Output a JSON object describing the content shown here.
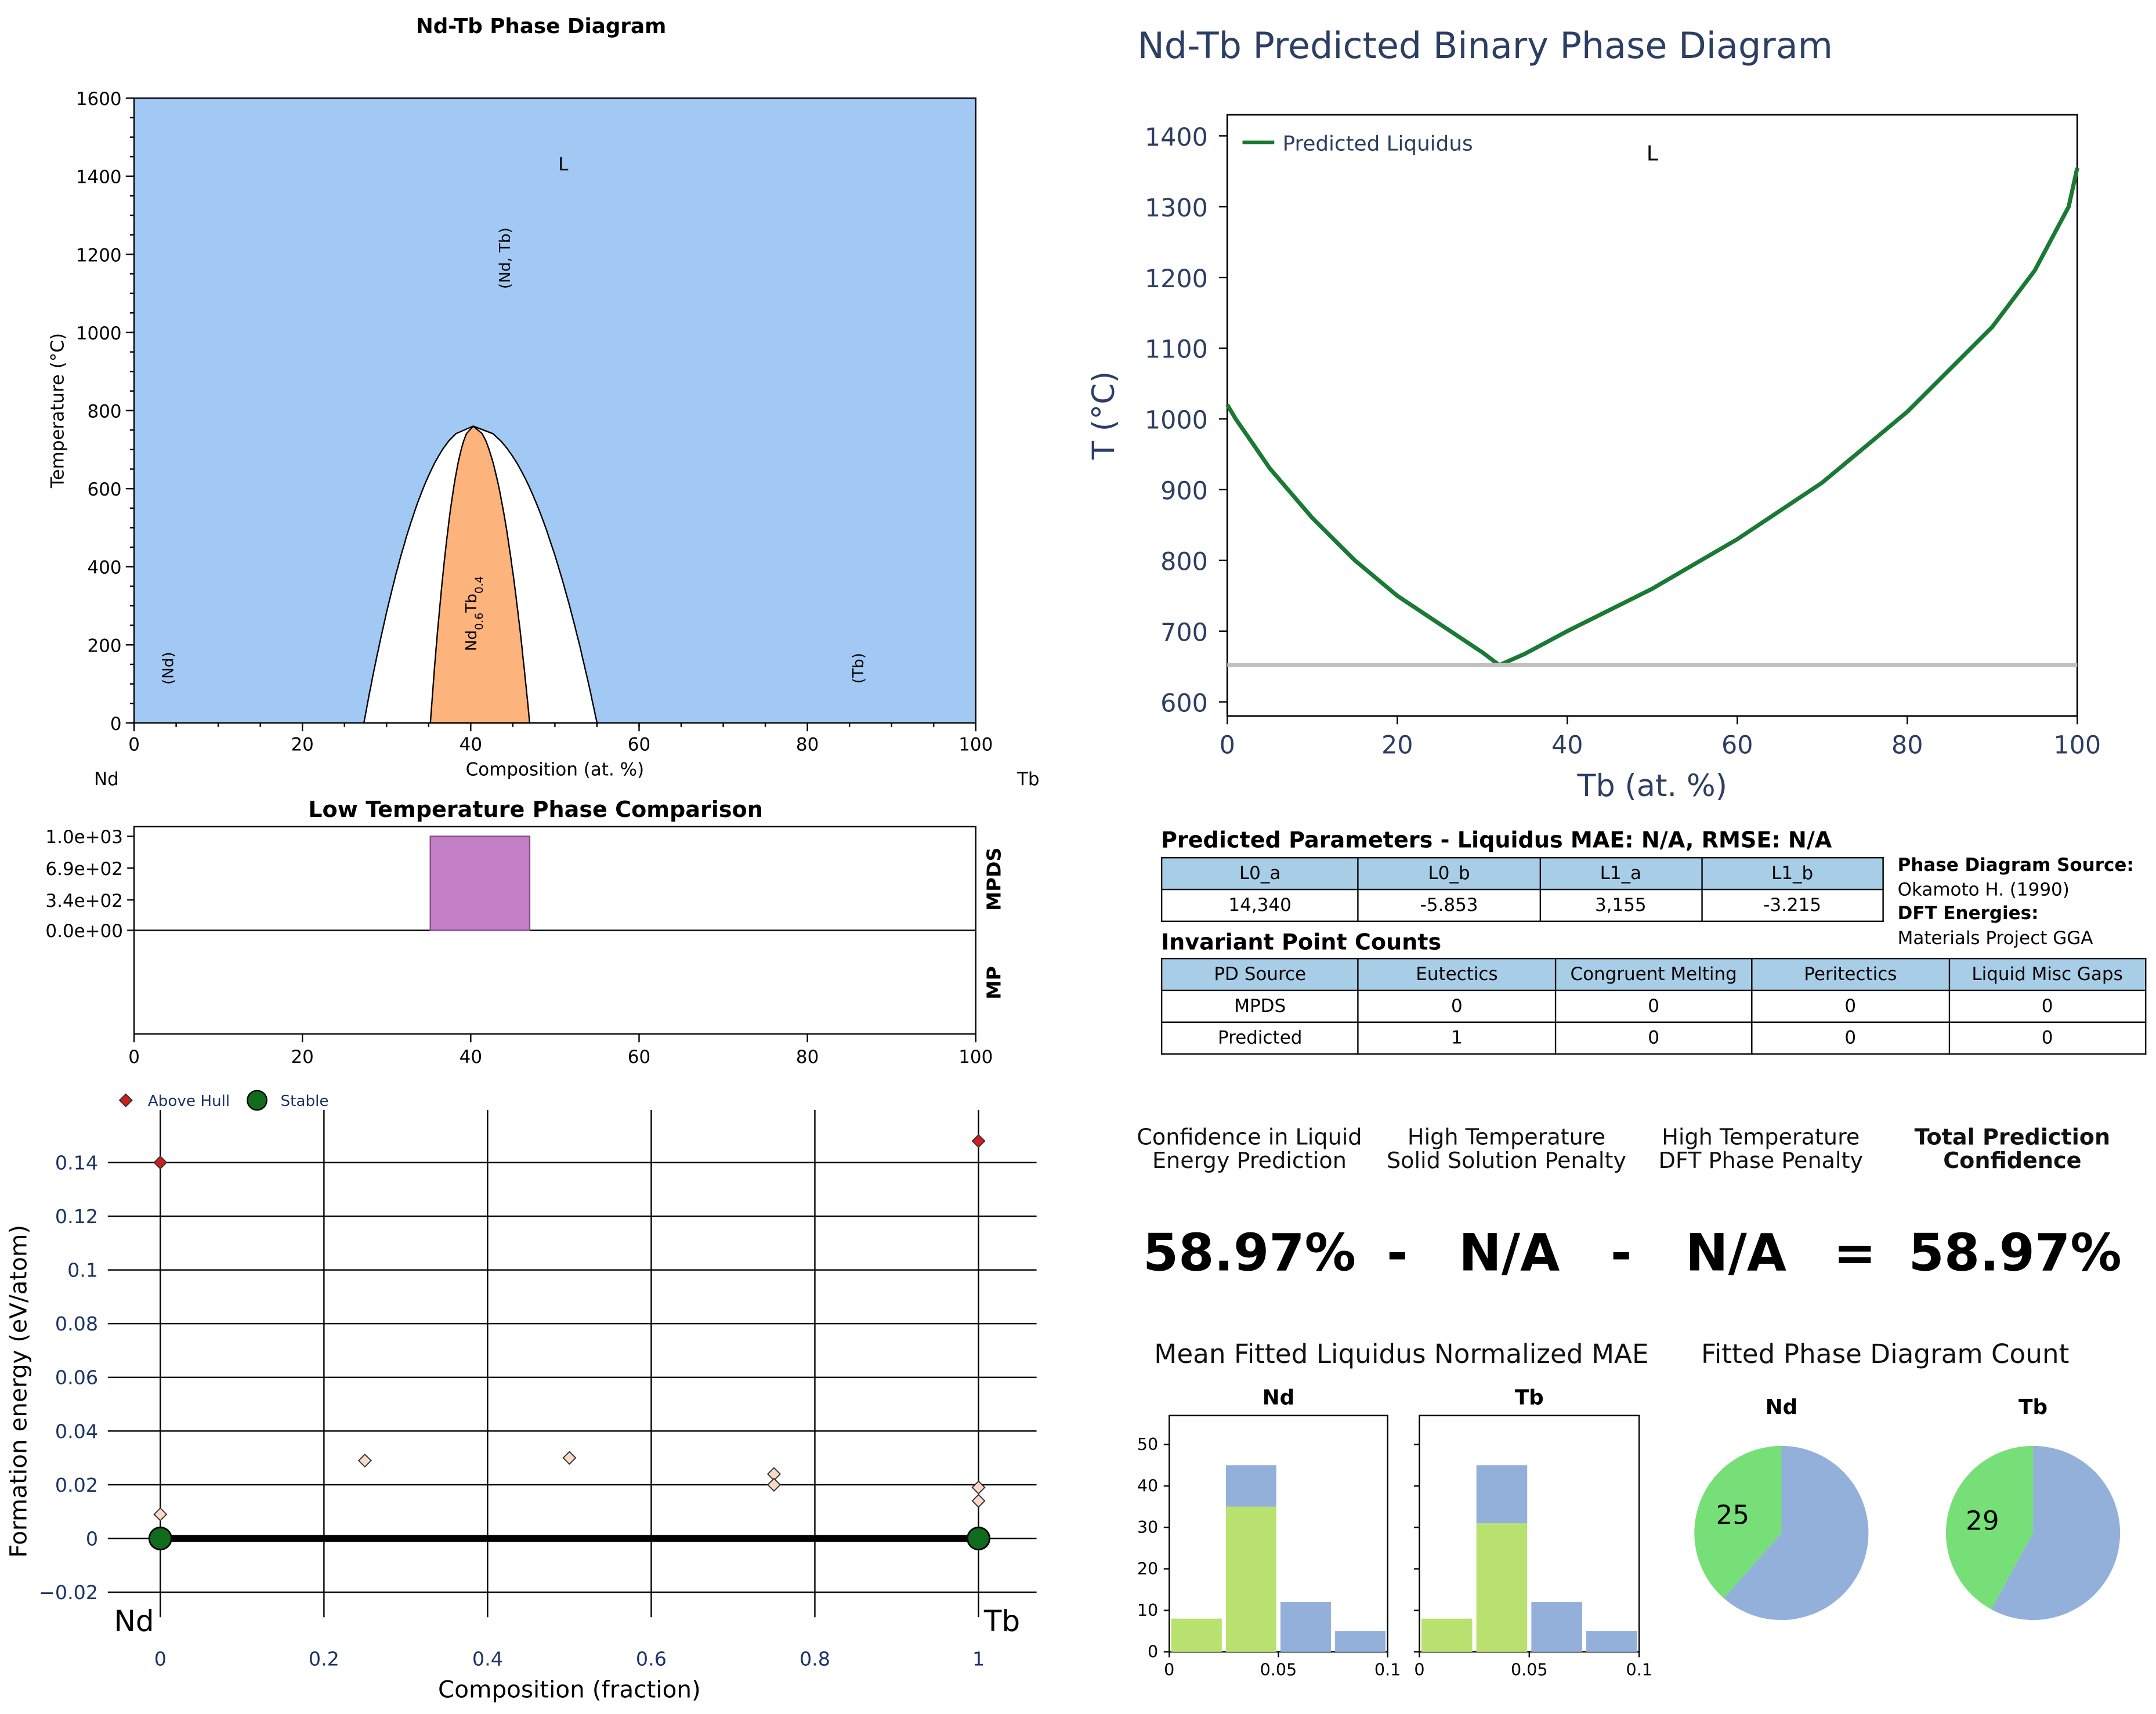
{
  "chart_data": [
    {
      "type": "area",
      "title": "Nd-Tb Phase Diagram",
      "xlabel": "Composition (at. %)",
      "ylabel": "Temperature (°C)",
      "xlim": [
        0,
        100
      ],
      "ylim": [
        0,
        1600
      ],
      "xticks": [
        "0",
        "20",
        "40",
        "60",
        "80",
        "100"
      ],
      "yticks": [
        "0",
        "200",
        "400",
        "600",
        "800",
        "1000",
        "1200",
        "1400",
        "1600"
      ],
      "element_left": "Nd",
      "element_right": "Tb",
      "regions": [
        {
          "label": "L",
          "x": 51,
          "y": 1415
        },
        {
          "label": "(Nd, Tb)",
          "x": 44,
          "y": 1190
        },
        {
          "label": "(Nd)",
          "x": 4,
          "y": 140
        },
        {
          "label": "(Tb)",
          "x": 86,
          "y": 140
        },
        {
          "label": "Nd0.6Tb0.4",
          "x": 40,
          "y": 280
        }
      ],
      "misc_gap_outer": {
        "x_left": 27.3,
        "x_right": 55,
        "peak_x": 40.3,
        "peak_t": 760
      },
      "compound_field": {
        "x_left": 35.2,
        "x_right": 47,
        "peak_x": 40.3,
        "peak_t": 760
      },
      "colors": {
        "liquid": "#a1c9f4",
        "compound": "#fdb37c",
        "gap": "#ffffff"
      }
    },
    {
      "type": "line",
      "title": "Nd-Tb Predicted Binary Phase Diagram",
      "xlabel": "Tb (at. %)",
      "ylabel": "T (°C)",
      "xlim": [
        0,
        100
      ],
      "ylim": [
        580,
        1430
      ],
      "xticks": [
        "0",
        "20",
        "40",
        "60",
        "80",
        "100"
      ],
      "yticks": [
        "600",
        "700",
        "800",
        "900",
        "1000",
        "1100",
        "1200",
        "1300",
        "1400"
      ],
      "legend": "top-left",
      "region_label": {
        "text": "L",
        "x": 50,
        "y": 1375
      },
      "series": [
        {
          "name": "Predicted Liquidus",
          "color": "#1a7a33",
          "x": [
            0,
            1,
            3,
            5,
            10,
            15,
            20,
            25,
            30,
            32,
            35,
            40,
            50,
            60,
            70,
            80,
            90,
            95,
            99,
            100
          ],
          "y": [
            1020,
            1000,
            965,
            930,
            860,
            800,
            750,
            710,
            670,
            652,
            668,
            700,
            760,
            830,
            910,
            1010,
            1130,
            1210,
            1300,
            1355
          ]
        },
        {
          "color": "#c0c0c0",
          "x": [
            0,
            100
          ],
          "y": [
            652,
            652
          ]
        }
      ]
    },
    {
      "type": "bar",
      "title": "Low Temperature Phase Comparison",
      "xlim": [
        0,
        100
      ],
      "xticks": [
        "0",
        "20",
        "40",
        "60",
        "80",
        "100"
      ],
      "yticks": [
        "1.0e+03",
        "6.9e+02",
        "3.4e+02",
        "0.0e+00"
      ],
      "rows": [
        "MPDS",
        "MP"
      ],
      "bars": [
        {
          "row": "MPDS",
          "x_start": 35.2,
          "x_end": 47,
          "value": 1000,
          "color": "#c27fc5"
        }
      ]
    },
    {
      "type": "scatter",
      "xlabel": "Composition (fraction)",
      "ylabel": "Formation energy (eV/atom)",
      "xlim": [
        -0.03,
        1.07
      ],
      "ylim": [
        -0.03,
        0.155
      ],
      "xticks": [
        "0",
        "0.2",
        "0.4",
        "0.6",
        "0.8",
        "1"
      ],
      "yticks": [
        "−0.02",
        "0",
        "0.02",
        "0.04",
        "0.06",
        "0.08",
        "0.1",
        "0.12",
        "0.14"
      ],
      "legend": "top-left",
      "end_labels": [
        "Nd",
        "Tb"
      ],
      "series": [
        {
          "name": "Above Hull",
          "x": [
            0,
            1
          ],
          "y": [
            0.14,
            0.148
          ],
          "color": "#cc1f1f"
        },
        {
          "name": "Stable",
          "x": [
            0,
            1
          ],
          "y": [
            0,
            0
          ],
          "color": "#116b1c"
        },
        {
          "x": [
            0,
            0.25,
            0.5,
            0.75,
            0.75,
            1,
            1
          ],
          "y": [
            0.009,
            0.029,
            0.03,
            0.024,
            0.02,
            0.019,
            0.014
          ],
          "color": "#fbd9c8"
        }
      ],
      "hull": {
        "x": [
          0,
          1
        ],
        "y": [
          0,
          0
        ]
      }
    },
    {
      "type": "bar",
      "title": "Mean Fitted Liquidus Normalized MAE",
      "panels": [
        {
          "title": "Nd",
          "categories": [
            0.0125,
            0.0375,
            0.0625,
            0.0875
          ],
          "series": [
            {
              "values": [
                8,
                35,
                0,
                0
              ],
              "color": "#b9e16f"
            },
            {
              "values": [
                0,
                10,
                12,
                5
              ],
              "color": "#92b0da"
            }
          ]
        },
        {
          "title": "Tb",
          "categories": [
            0.0125,
            0.0375,
            0.0625,
            0.0875
          ],
          "series": [
            {
              "values": [
                8,
                31,
                0,
                0
              ],
              "color": "#b9e16f"
            },
            {
              "values": [
                0,
                14,
                12,
                5
              ],
              "color": "#92b0da"
            }
          ]
        }
      ],
      "xlim": [
        0,
        0.1
      ],
      "ylim": [
        0,
        57
      ],
      "xticks": [
        "0",
        "0.05",
        "0.1"
      ],
      "yticks": [
        "0",
        "10",
        "20",
        "30",
        "40",
        "50"
      ]
    },
    {
      "type": "pie",
      "title": "Fitted Phase Diagram Count",
      "panels": [
        {
          "title": "Nd",
          "values": [
            25,
            40
          ],
          "labels": [
            "25",
            ""
          ],
          "colors": [
            "#77df77",
            "#92b0da"
          ]
        },
        {
          "title": "Tb",
          "values": [
            29,
            40
          ],
          "labels": [
            "29",
            ""
          ],
          "colors": [
            "#77df77",
            "#92b0da"
          ]
        }
      ]
    }
  ],
  "params": {
    "title": "Predicted Parameters - Liquidus MAE: N/A, RMSE: N/A",
    "headers": [
      "L0_a",
      "L0_b",
      "L1_a",
      "L1_b"
    ],
    "values": [
      "14,340",
      "-5.853",
      "3,155",
      "-3.215"
    ]
  },
  "invariants": {
    "title": "Invariant Point Counts",
    "headers": [
      "PD Source",
      "Eutectics",
      "Congruent Melting",
      "Peritectics",
      "Liquid Misc Gaps"
    ],
    "rows": [
      [
        "MPDS",
        "0",
        "0",
        "0",
        "0"
      ],
      [
        "Predicted",
        "1",
        "0",
        "0",
        "0"
      ]
    ]
  },
  "source": {
    "pd_label": "Phase Diagram Source:",
    "pd_value": "Okamoto H. (1990)",
    "dft_label": "DFT Energies:",
    "dft_value": "Materials Project GGA"
  },
  "confidence": {
    "labels": [
      "Confidence in Liquid\nEnergy Prediction",
      "High Temperature\nSolid Solution Penalty",
      "High Temperature\nDFT Phase Penalty",
      "Total Prediction\nConfidence"
    ],
    "values": [
      "58.97%",
      "N/A",
      "N/A",
      "58.97%"
    ],
    "ops": [
      "-",
      "-",
      "="
    ]
  }
}
